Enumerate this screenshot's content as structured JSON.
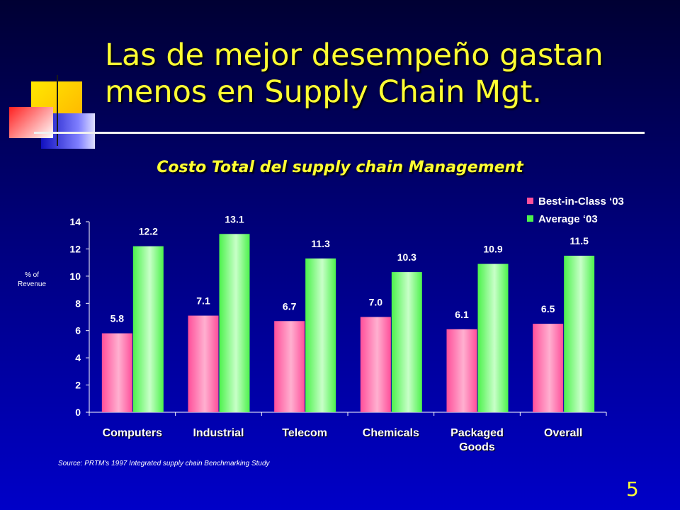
{
  "slide": {
    "title_line1": "Las de mejor desempeño gastan",
    "title_line2": "menos en Supply Chain Mgt.",
    "subtitle": "Costo Total del supply chain Management",
    "source": "Source:  PRTM's 1997 Integrated supply chain Benchmarking Study",
    "page_number": "5"
  },
  "colors": {
    "title": "#ffff33",
    "series_best": "#ff4f9a",
    "series_average": "#4cf24c",
    "deco_yellow": "#ffd400",
    "deco_blue": "#2222d0",
    "deco_red": "#ff3030"
  },
  "chart_data": {
    "type": "bar",
    "title": "",
    "xlabel": "",
    "ylabel_lines": [
      "% of",
      "Revenue"
    ],
    "categories": [
      [
        "Computers"
      ],
      [
        "Industrial"
      ],
      [
        "Telecom"
      ],
      [
        "Chemicals"
      ],
      [
        "Packaged",
        "Goods"
      ],
      [
        "Overall"
      ]
    ],
    "series": [
      {
        "name": "Best-in-Class ‘03",
        "values": [
          5.8,
          7.1,
          6.7,
          7.0,
          6.1,
          6.5
        ],
        "labels": [
          "5.8",
          "7.1",
          "6.7",
          "7.0",
          "6.1",
          "6.5"
        ]
      },
      {
        "name": "Average ‘03",
        "values": [
          12.2,
          13.1,
          11.3,
          10.3,
          10.9,
          11.5
        ],
        "labels": [
          "12.2",
          "13.1",
          "11.3",
          "10.3",
          "10.9",
          "11.5"
        ]
      }
    ],
    "ylim": [
      0,
      14
    ],
    "yticks": [
      0,
      2,
      4,
      6,
      8,
      10,
      12,
      14
    ],
    "grid": false,
    "legend_position": "top-right"
  }
}
